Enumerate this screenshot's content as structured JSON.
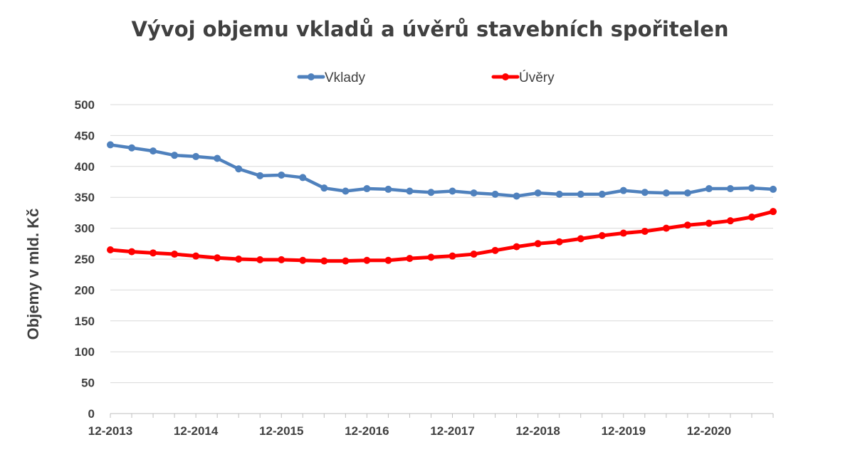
{
  "chart_data": {
    "type": "line",
    "title": "Vývoj objemu vkladů a úvěrů stavebních spořitelen",
    "xlabel": "",
    "ylabel": "Objemy v mld. Kč",
    "ylim": [
      0,
      500
    ],
    "yticks": [
      0,
      50,
      100,
      150,
      200,
      250,
      300,
      350,
      400,
      450,
      500
    ],
    "grid": true,
    "legend_position": "top",
    "x": [
      "12-2013",
      "03-2014",
      "06-2014",
      "09-2014",
      "12-2014",
      "03-2015",
      "06-2015",
      "09-2015",
      "12-2015",
      "03-2016",
      "06-2016",
      "09-2016",
      "12-2016",
      "03-2017",
      "06-2017",
      "09-2017",
      "12-2017",
      "03-2018",
      "06-2018",
      "09-2018",
      "12-2018",
      "03-2019",
      "06-2019",
      "09-2019",
      "12-2019",
      "03-2020",
      "06-2020",
      "09-2020",
      "12-2020",
      "03-2021",
      "06-2021",
      "09-2021"
    ],
    "xtick_labels": [
      "12-2013",
      "12-2014",
      "12-2015",
      "12-2016",
      "12-2017",
      "12-2018",
      "12-2019",
      "12-2020"
    ],
    "series": [
      {
        "name": "Vklady",
        "color": "#4F81BD",
        "values": [
          435,
          430,
          425,
          418,
          416,
          413,
          396,
          385,
          386,
          382,
          365,
          360,
          364,
          363,
          360,
          358,
          360,
          357,
          355,
          352,
          357,
          355,
          355,
          355,
          361,
          358,
          357,
          357,
          364,
          364,
          365,
          363
        ]
      },
      {
        "name": "Úvěry",
        "color": "#FF0000",
        "values": [
          265,
          262,
          260,
          258,
          255,
          252,
          250,
          249,
          249,
          248,
          247,
          247,
          248,
          248,
          251,
          253,
          255,
          258,
          264,
          270,
          275,
          278,
          283,
          288,
          292,
          295,
          300,
          305,
          308,
          312,
          318,
          327
        ]
      }
    ]
  }
}
